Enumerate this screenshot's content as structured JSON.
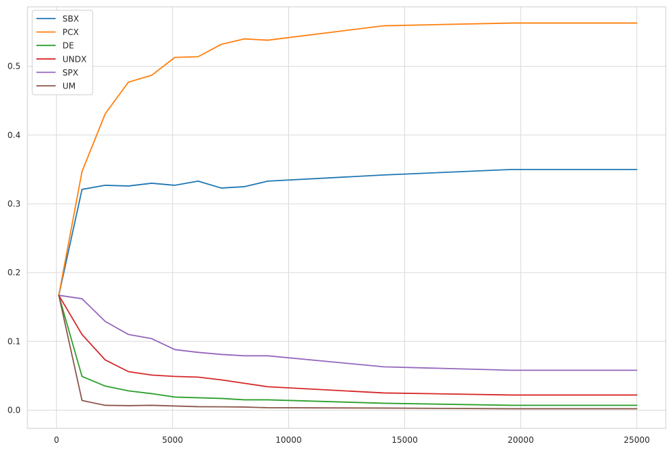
{
  "chart_data": {
    "type": "line",
    "title": "",
    "xlabel": "",
    "ylabel": "",
    "xlim": [
      -1250,
      26250
    ],
    "ylim": [
      -0.0265,
      0.5865
    ],
    "xticks": [
      0,
      5000,
      10000,
      15000,
      20000,
      25000
    ],
    "xtick_labels": [
      "0",
      "5000",
      "10000",
      "15000",
      "20000",
      "25000"
    ],
    "yticks": [
      0.0,
      0.1,
      0.2,
      0.3,
      0.4,
      0.5
    ],
    "ytick_labels": [
      "0.0",
      "0.1",
      "0.2",
      "0.3",
      "0.4",
      "0.5"
    ],
    "grid": true,
    "legend_position": "top-left",
    "x": [
      100,
      1100,
      2100,
      3100,
      4100,
      5100,
      6100,
      7100,
      8100,
      9100,
      14100,
      19600,
      25000
    ],
    "series": [
      {
        "name": "SBX",
        "color": "#1f77b4",
        "values": [
          0.167,
          0.321,
          0.327,
          0.326,
          0.33,
          0.327,
          0.333,
          0.323,
          0.325,
          0.333,
          0.342,
          0.35,
          0.35
        ]
      },
      {
        "name": "PCX",
        "color": "#ff7f0e",
        "values": [
          0.167,
          0.347,
          0.431,
          0.477,
          0.487,
          0.513,
          0.514,
          0.532,
          0.54,
          0.538,
          0.559,
          0.563,
          0.563
        ]
      },
      {
        "name": "DE",
        "color": "#2ca02c",
        "values": [
          0.167,
          0.049,
          0.035,
          0.028,
          0.024,
          0.019,
          0.018,
          0.017,
          0.015,
          0.015,
          0.01,
          0.007,
          0.007
        ]
      },
      {
        "name": "UNDX",
        "color": "#d62728",
        "values": [
          0.167,
          0.11,
          0.073,
          0.056,
          0.051,
          0.049,
          0.048,
          0.044,
          0.039,
          0.034,
          0.025,
          0.022,
          0.022
        ]
      },
      {
        "name": "SPX",
        "color": "#9467bd",
        "values": [
          0.167,
          0.162,
          0.129,
          0.11,
          0.104,
          0.088,
          0.084,
          0.081,
          0.079,
          0.079,
          0.063,
          0.058,
          0.058
        ]
      },
      {
        "name": "UM",
        "color": "#8c564b",
        "values": [
          0.167,
          0.014,
          0.007,
          0.0065,
          0.007,
          0.006,
          0.005,
          0.0048,
          0.0045,
          0.0035,
          0.003,
          0.002,
          0.002
        ]
      }
    ]
  }
}
